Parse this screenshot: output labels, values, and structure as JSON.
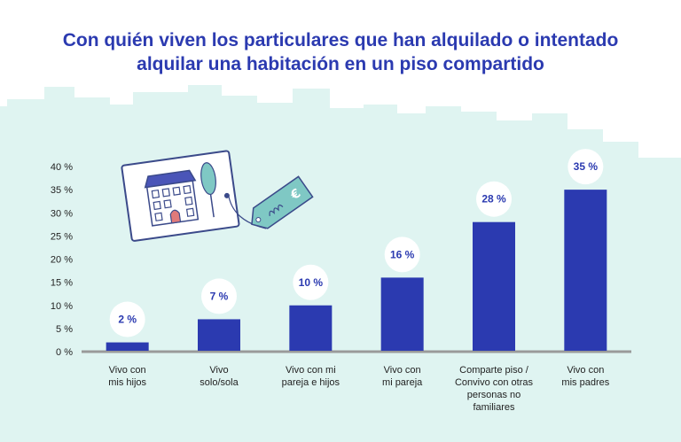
{
  "title_lines": [
    "Con quién viven los particulares que han alquilado o intentado",
    "alquilar una habitación en un piso compartido"
  ],
  "colors": {
    "bar": "#2b3ab0",
    "title": "#2b3ab0",
    "skyline": "#dff4f1",
    "baseline": "#9a9a9a",
    "label_bg": "#ffffff",
    "illustration_navy": "#3b4a8a",
    "tag_teal": "#7fc8c4"
  },
  "illustration": {
    "icon": "house-listing-with-price-tag-icon",
    "tag_symbol": "€"
  },
  "chart_data": {
    "type": "bar",
    "title": "Con quién viven los particulares que han alquilado o intentado alquilar una habitación en un piso compartido",
    "xlabel": "",
    "ylabel": "",
    "ylim": [
      0,
      40
    ],
    "yticks": [
      "0 %",
      "5 %",
      "10 %",
      "15 %",
      "20 %",
      "25 %",
      "30 %",
      "35 %",
      "40 %"
    ],
    "grid": false,
    "categories": [
      [
        "Vivo con",
        "mis hijos"
      ],
      [
        "Vivo",
        "solo/sola"
      ],
      [
        "Vivo con mi",
        "pareja e hijos"
      ],
      [
        "Vivo con",
        "mi pareja"
      ],
      [
        "Comparte piso /",
        "Convivo con otras",
        "personas no",
        "familiares"
      ],
      [
        "Vivo con",
        "mis padres"
      ]
    ],
    "values": [
      2,
      7,
      10,
      16,
      28,
      35
    ],
    "value_labels": [
      "2 %",
      "7 %",
      "10 %",
      "16 %",
      "28 %",
      "35 %"
    ]
  }
}
